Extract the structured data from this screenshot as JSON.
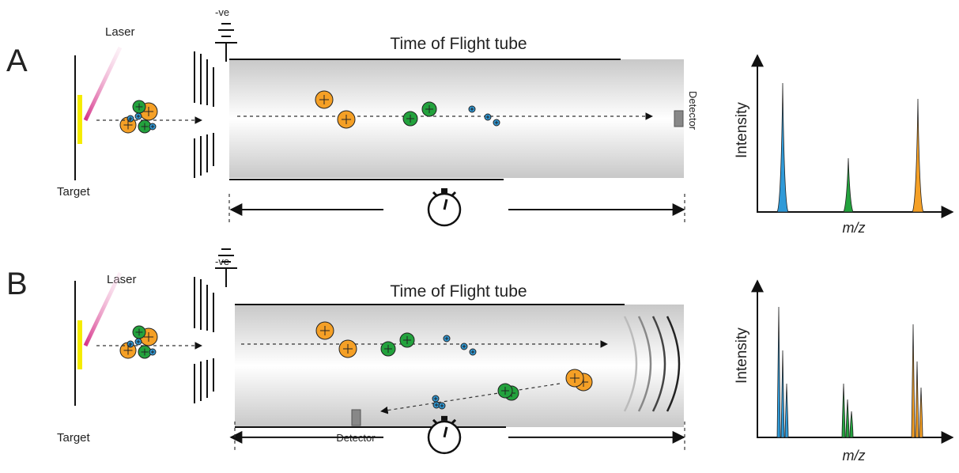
{
  "panels": [
    {
      "label": "A",
      "laser": "Laser",
      "target": "Target",
      "voltage": "-ve",
      "tube_title": "Time of Flight tube",
      "detector": "Detector",
      "y_axis": "Intensity",
      "x_axis": "m/z"
    },
    {
      "label": "B",
      "laser": "Laser",
      "target": "Target",
      "voltage": "-ve",
      "tube_title": "Time of Flight tube",
      "detector": "Detector",
      "y_axis": "Intensity",
      "x_axis": "m/z"
    }
  ]
}
